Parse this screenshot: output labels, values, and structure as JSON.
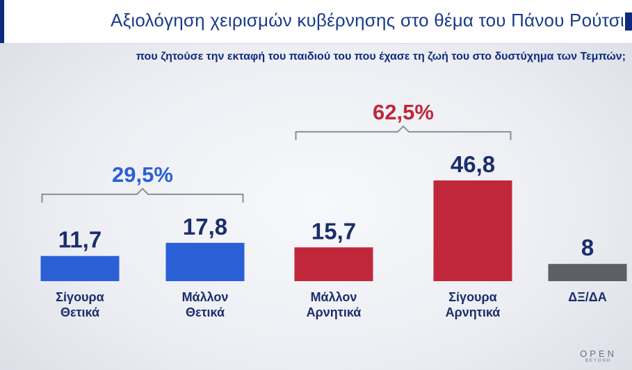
{
  "title": "Αξιολόγηση χειρισμών κυβέρνησης στο θέμα του Πάνου Ρούτσι",
  "subtitle": "που ζητούσε την εκταφή του παιδιού του που έχασε τη ζωή του στο δυστύχημα των Τεμπών;",
  "logo": {
    "main": "OPEN",
    "sub": "BEYOND"
  },
  "colors": {
    "positive": "#2a5fd6",
    "negative": "#c0273a",
    "neutral": "#5e5f63",
    "value_text": "#1b2d6b"
  },
  "chart_data": {
    "type": "bar",
    "categories": [
      [
        "Σίγουρα",
        "Θετικά"
      ],
      [
        "Μάλλον",
        "Θετικά"
      ],
      [
        "Μάλλον",
        "Αρνητικά"
      ],
      [
        "Σίγουρα",
        "Αρνητικά"
      ],
      [
        "ΔΞ/ΔΑ"
      ]
    ],
    "values": [
      11.7,
      17.8,
      15.7,
      46.8,
      8
    ],
    "value_labels": [
      "11,7",
      "17,8",
      "15,7",
      "46,8",
      "8"
    ],
    "bar_colors": [
      "positive",
      "positive",
      "negative",
      "negative",
      "neutral"
    ],
    "groups": [
      {
        "label": "29,5%",
        "from": 0,
        "to": 1,
        "color": "#2a5fd6"
      },
      {
        "label": "62,5%",
        "from": 2,
        "to": 3,
        "color": "#c0273a"
      }
    ],
    "xlabel": "",
    "ylabel": "",
    "ylim": [
      0,
      50
    ],
    "grid": false,
    "legend": "none"
  }
}
